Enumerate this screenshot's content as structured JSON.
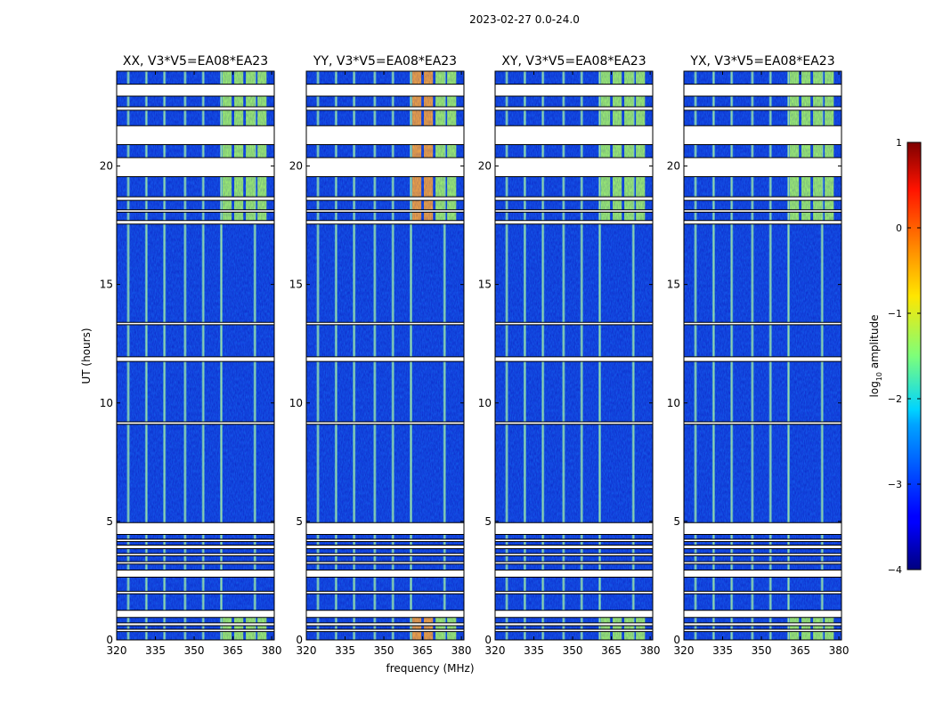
{
  "figure": {
    "title": "2023-02-27 0.0-24.0"
  },
  "chart_data": {
    "type": "heatmap",
    "title": "2023-02-27 0.0-24.0",
    "xlabel": "frequency (MHz)",
    "ylabel": "UT (hours)",
    "xlim": [
      320,
      381
    ],
    "ylim": [
      0,
      24
    ],
    "xticks": [
      320,
      335,
      350,
      365,
      380
    ],
    "yticks": [
      0,
      5,
      10,
      15,
      20
    ],
    "panels": [
      {
        "title": "XX, V3*V5=EA08*EA23"
      },
      {
        "title": "YY, V3*V5=EA08*EA23"
      },
      {
        "title": "XY, V3*V5=EA08*EA23"
      },
      {
        "title": "YX, V3*V5=EA08*EA23"
      }
    ],
    "colorbar": {
      "label": "log10 amplitude",
      "label_main": "log",
      "label_sub": "10",
      "label_rest": " amplitude",
      "range": [
        -4,
        1
      ],
      "ticks": [
        -4,
        -3,
        -2,
        -1,
        0,
        1
      ],
      "tick_labels": [
        "−4",
        "−3",
        "−2",
        "−1",
        "0",
        "1"
      ],
      "colormap": "jet"
    },
    "flagged_time_ranges_hours": [
      [
        0.35,
        0.45
      ],
      [
        0.6,
        0.72
      ],
      [
        0.95,
        1.25
      ],
      [
        1.95,
        2.05
      ],
      [
        2.65,
        2.95
      ],
      [
        3.2,
        3.3
      ],
      [
        3.55,
        3.65
      ],
      [
        3.85,
        4.0
      ],
      [
        4.15,
        4.25
      ],
      [
        4.45,
        4.95
      ],
      [
        9.1,
        9.2
      ],
      [
        11.75,
        11.95
      ],
      [
        13.3,
        13.4
      ],
      [
        17.55,
        17.7
      ],
      [
        18.05,
        18.15
      ],
      [
        18.55,
        18.7
      ],
      [
        19.55,
        20.35
      ],
      [
        20.9,
        21.7
      ],
      [
        22.35,
        22.5
      ],
      [
        22.95,
        23.45
      ]
    ],
    "vertical_rfi_channels_MHz": [
      324.5,
      331.5,
      338.5,
      346.5,
      353.5,
      360.5,
      373.5
    ],
    "strong_rfi_blocks_MHz": [
      [
        361,
        364.5
      ],
      [
        365.5,
        369
      ],
      [
        370,
        373.5
      ],
      [
        374.5,
        378
      ]
    ],
    "strong_rfi_time_ranges_hours": [
      [
        0,
        1.2
      ],
      [
        17.6,
        24
      ]
    ]
  }
}
